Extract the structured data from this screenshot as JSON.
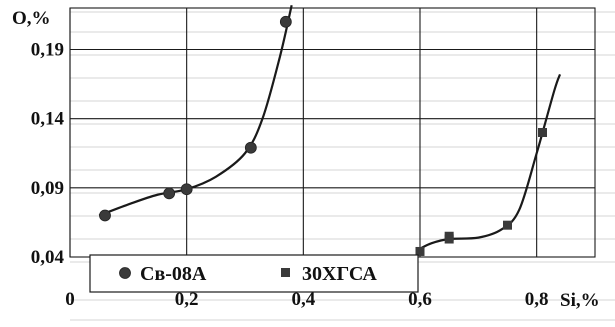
{
  "chart_data": {
    "type": "scatter",
    "xlabel": "Si,%",
    "ylabel": "O,%",
    "xlim": [
      0,
      0.9
    ],
    "ylim": [
      0.04,
      0.22
    ],
    "x_ticks": [
      "0",
      "0,2",
      "0,4",
      "0,6",
      "0,8"
    ],
    "y_ticks": [
      "0,04",
      "0,09",
      "0,14",
      "0,19"
    ],
    "x_tick_values": [
      0,
      0.2,
      0.4,
      0.6,
      0.8
    ],
    "y_tick_values": [
      0.04,
      0.09,
      0.14,
      0.19
    ],
    "grid": true,
    "legend_position": "bottom-left",
    "series": [
      {
        "name": "Св-08А",
        "marker": "circle",
        "color": "#3a3a3a",
        "points": [
          [
            0.06,
            0.07
          ],
          [
            0.17,
            0.086
          ],
          [
            0.2,
            0.089
          ],
          [
            0.31,
            0.119
          ],
          [
            0.37,
            0.21
          ]
        ],
        "curve": [
          [
            0.05,
            0.07
          ],
          [
            0.1,
            0.078
          ],
          [
            0.15,
            0.085
          ],
          [
            0.2,
            0.089
          ],
          [
            0.25,
            0.098
          ],
          [
            0.3,
            0.115
          ],
          [
            0.33,
            0.14
          ],
          [
            0.36,
            0.185
          ],
          [
            0.38,
            0.222
          ]
        ]
      },
      {
        "name": "30ХГСА",
        "marker": "square",
        "color": "#3a3a3a",
        "points": [
          [
            0.6,
            0.044
          ],
          [
            0.65,
            0.053
          ],
          [
            0.65,
            0.055
          ],
          [
            0.75,
            0.063
          ],
          [
            0.81,
            0.13
          ]
        ],
        "curve": [
          [
            0.6,
            0.046
          ],
          [
            0.62,
            0.05
          ],
          [
            0.65,
            0.053
          ],
          [
            0.7,
            0.054
          ],
          [
            0.74,
            0.06
          ],
          [
            0.77,
            0.074
          ],
          [
            0.8,
            0.115
          ],
          [
            0.83,
            0.16
          ],
          [
            0.84,
            0.172
          ]
        ]
      }
    ]
  }
}
